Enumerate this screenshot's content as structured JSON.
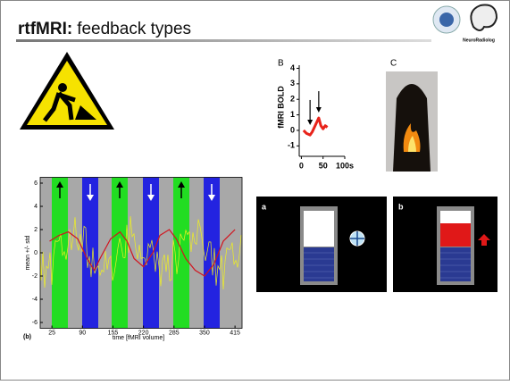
{
  "slide": {
    "title_bold": "rtfMRI:",
    "title_rest": "feedback types",
    "logo_text": "NeuroRadiolog"
  },
  "figure_b": {
    "panel_label": "B",
    "y_label": "fMRI BOLD",
    "xlim": [
      -5,
      100
    ],
    "ylim": [
      -1.5,
      4.2
    ],
    "xticks": [
      0,
      50,
      {
        "value": 100,
        "label": "100s"
      }
    ],
    "yticks": [
      4,
      3,
      2,
      1,
      0,
      -1
    ],
    "curve": {
      "color": "#e8231a",
      "x": [
        5,
        12,
        20,
        25,
        30,
        35,
        40,
        45,
        50,
        55,
        60
      ],
      "values": [
        0,
        -0.2,
        -0.3,
        -0.1,
        0.2,
        0.5,
        0.8,
        0.3,
        0.1,
        0.3,
        0.2
      ]
    }
  },
  "figure_c": {
    "panel_label": "C"
  },
  "figure_timecourse": {
    "panel_label": "(b)",
    "x_label": "time [fMRI volume]",
    "y_label": "mean +/- std",
    "xlim": [
      0,
      430
    ],
    "ylim": [
      -6.5,
      6.5
    ],
    "xticks": [
      25,
      90,
      155,
      220,
      285,
      350,
      415
    ],
    "yticks": [
      6,
      4,
      2,
      0,
      -2,
      -4,
      -6
    ],
    "curve": {
      "color": "#d2141e",
      "x": [
        20,
        40,
        60,
        80,
        100,
        115,
        130,
        150,
        170,
        185,
        200,
        220,
        240,
        255,
        275,
        290,
        310,
        330,
        350,
        370,
        390,
        415
      ],
      "values": [
        1,
        1.5,
        1.8,
        1.2,
        -0.5,
        -1.5,
        -0.3,
        1.2,
        1.8,
        1,
        -0.5,
        -1.2,
        0,
        1.5,
        2,
        1.2,
        -0.5,
        -1.5,
        -2,
        -1,
        1,
        2
      ]
    }
  },
  "thermometers": {
    "panel_a_label": "a",
    "panel_b_label": "b"
  }
}
